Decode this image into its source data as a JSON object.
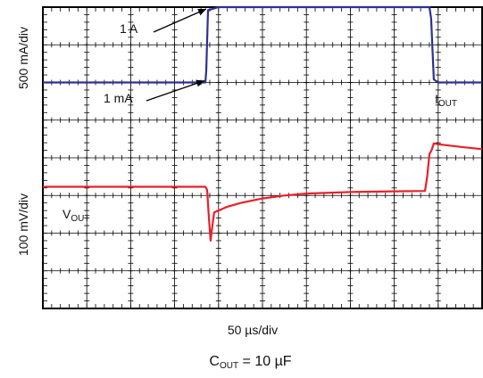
{
  "chart_data": {
    "type": "line",
    "title": "",
    "ylabel_top": "500 mA/div",
    "ylabel_bottom": "100 mV/div",
    "xlabel": "50 µs/div",
    "caption": {
      "base": "C",
      "sub": "OUT",
      "rest": " = 10 µF"
    },
    "grid": {
      "on": true,
      "x_divisions": 10,
      "y_divisions": 8
    },
    "annotations": {
      "high": "1 A",
      "low": "1 mA",
      "iout": {
        "base": "I",
        "sub": "OUT"
      },
      "vout": {
        "base": "V",
        "sub": "OUT"
      }
    },
    "colors": {
      "iout": "#2e3192",
      "vout": "#e8202a",
      "grid": "#000000"
    },
    "series": [
      {
        "name": "IOUT",
        "unit_per_div": "500 mA/div",
        "x_div": [
          0,
          3.7,
          3.72,
          3.76,
          4.0,
          8.8,
          8.84,
          8.9,
          9.0,
          10
        ],
        "y_div": [
          6.0,
          6.0,
          6.3,
          7.92,
          8.0,
          8.0,
          7.7,
          6.08,
          6.0,
          6.0
        ]
      },
      {
        "name": "VOUT",
        "unit_per_div": "100 mV/div",
        "x_div": [
          0,
          3.7,
          3.74,
          3.78,
          3.82,
          3.86,
          3.9,
          4.0,
          4.2,
          4.5,
          5.0,
          5.5,
          6.0,
          7.0,
          8.0,
          8.7,
          8.75,
          8.8,
          8.85,
          8.9,
          9.0,
          9.5,
          10
        ],
        "y_div": [
          3.23,
          3.23,
          3.15,
          2.4,
          1.8,
          2.2,
          2.55,
          2.6,
          2.7,
          2.8,
          2.92,
          3.0,
          3.05,
          3.09,
          3.11,
          3.12,
          3.5,
          4.1,
          4.2,
          4.38,
          4.36,
          4.29,
          4.23
        ]
      }
    ]
  }
}
